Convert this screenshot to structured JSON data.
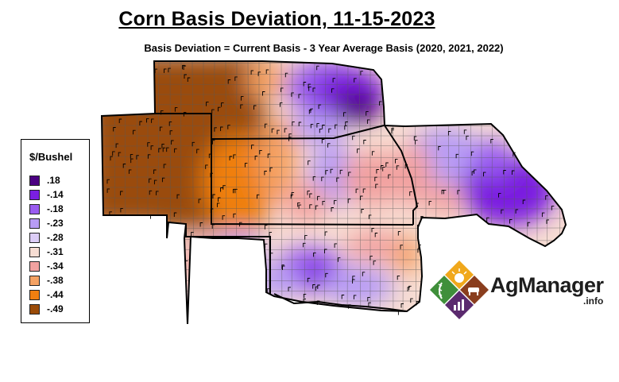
{
  "title": "Corn Basis Deviation, 11-15-2023",
  "subtitle": "Basis Deviation = Current Basis - 3 Year Average Basis (2020, 2021, 2022)",
  "legend": {
    "title": "$/Bushel",
    "items": [
      {
        "label": ".18",
        "color": "#4b0082"
      },
      {
        "label": "-.14",
        "color": "#7a1fe0"
      },
      {
        "label": "-.18",
        "color": "#9a5cf0"
      },
      {
        "label": "-.23",
        "color": "#b89cf5"
      },
      {
        "label": "-.28",
        "color": "#dccdf7"
      },
      {
        "label": "-.31",
        "color": "#f7ddd3"
      },
      {
        "label": "-.34",
        "color": "#f2a2a0"
      },
      {
        "label": "-.38",
        "color": "#f5a263"
      },
      {
        "label": "-.44",
        "color": "#f07f10"
      },
      {
        "label": "-.49",
        "color": "#9a4b08"
      }
    ]
  },
  "logo": {
    "name": "AgManager",
    "suffix": ".info"
  }
}
